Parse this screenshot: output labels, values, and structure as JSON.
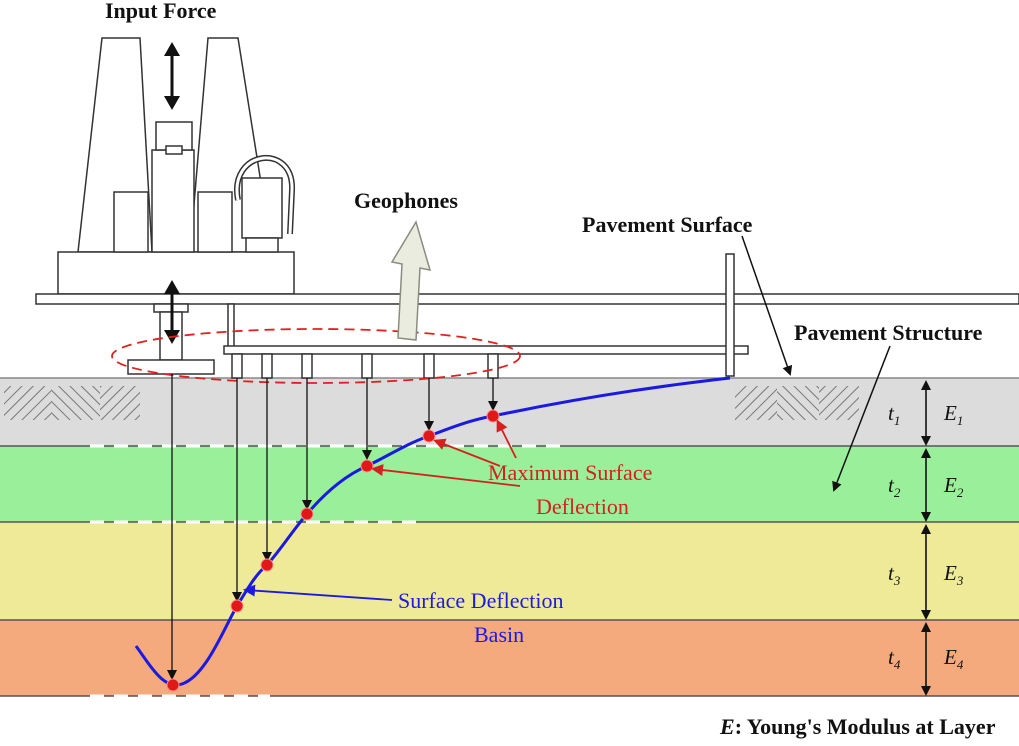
{
  "labels": {
    "input_force": "Input Force",
    "geophones": "Geophones",
    "pavement_surface": "Pavement Surface",
    "pavement_structure": "Pavement Structure",
    "max_deflection_line1": "Maximum Surface",
    "max_deflection_line2": "Deflection",
    "basin_line1": "Surface Deflection",
    "basin_line2": "Basin",
    "legend_symbol": "E",
    "legend_text": ": Young's Modulus at Layer"
  },
  "layers": [
    {
      "t": "t",
      "t_sub": "1",
      "e": "E",
      "e_sub": "1",
      "color": "#dcdcdc"
    },
    {
      "t": "t",
      "t_sub": "2",
      "e": "E",
      "e_sub": "2",
      "color": "#9af09a"
    },
    {
      "t": "t",
      "t_sub": "3",
      "e": "E",
      "e_sub": "3",
      "color": "#eeea98"
    },
    {
      "t": "t",
      "t_sub": "4",
      "e": "E",
      "e_sub": "4",
      "color": "#f5aa7e"
    }
  ],
  "colors": {
    "deflection_curve": "#1a1ae0",
    "sensor_point": "#e01818",
    "annotation_red": "#d62020",
    "dashed_ellipse": "#e02020"
  }
}
